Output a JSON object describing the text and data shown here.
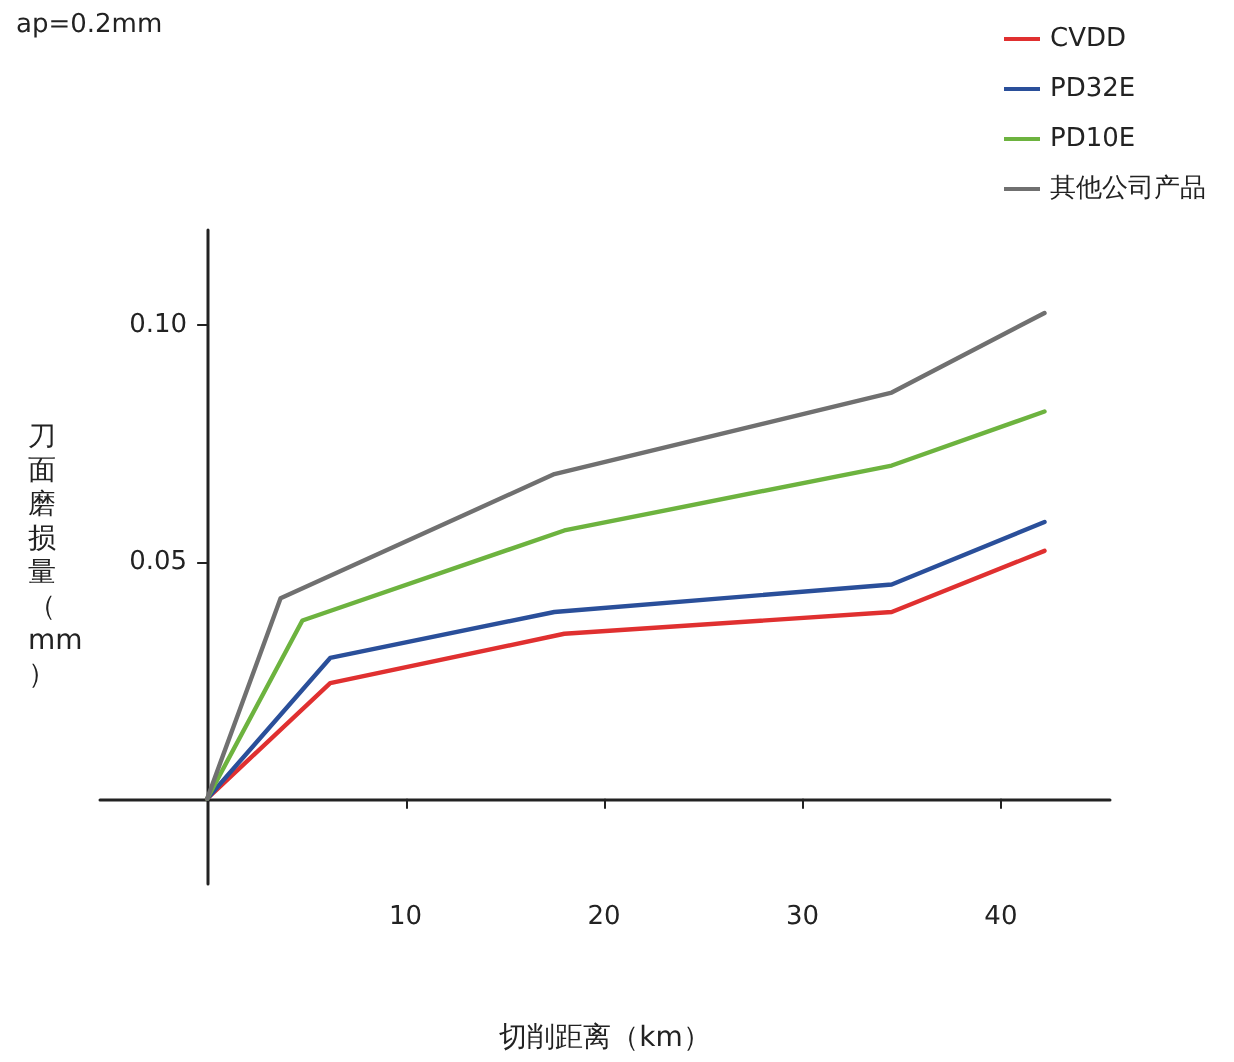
{
  "chart_data": {
    "type": "line",
    "xlabel": "切削距离（km）",
    "ylabel": "刀面磨损量（mm）",
    "annotations": [
      "ap=0.2mm"
    ],
    "xlim": [
      -5.4,
      45.5
    ],
    "ylim": [
      -0.018,
      0.12
    ],
    "xticks": [
      10,
      20,
      30,
      40
    ],
    "yticks": [
      {
        "value": 0.05,
        "label": "0.05"
      },
      {
        "value": 0.1,
        "label": "0.10"
      }
    ],
    "grid": false,
    "legend": "top right",
    "marker": "none",
    "line_style": "solid",
    "series": [
      {
        "name": "CVDD",
        "color": "#e03030",
        "x": [
          0,
          6.2,
          18,
          34.5,
          42.2
        ],
        "values": [
          0,
          0.0244,
          0.0348,
          0.0394,
          0.0523
        ]
      },
      {
        "name": "PD32E",
        "color": "#2a4f9a",
        "x": [
          0,
          6.2,
          17.5,
          34.5,
          42.2
        ],
        "values": [
          0,
          0.0297,
          0.0394,
          0.0452,
          0.0584
        ]
      },
      {
        "name": "PD10E",
        "color": "#6db33f",
        "x": [
          0,
          4.8,
          18,
          34.5,
          42.2
        ],
        "values": [
          0,
          0.0376,
          0.0566,
          0.0703,
          0.0817
        ]
      },
      {
        "name": "其他公司产品",
        "color": "#707070",
        "x": [
          0,
          3.7,
          17.5,
          34.5,
          42.2
        ],
        "values": [
          0,
          0.0423,
          0.0685,
          0.0857,
          0.1025
        ]
      }
    ]
  }
}
